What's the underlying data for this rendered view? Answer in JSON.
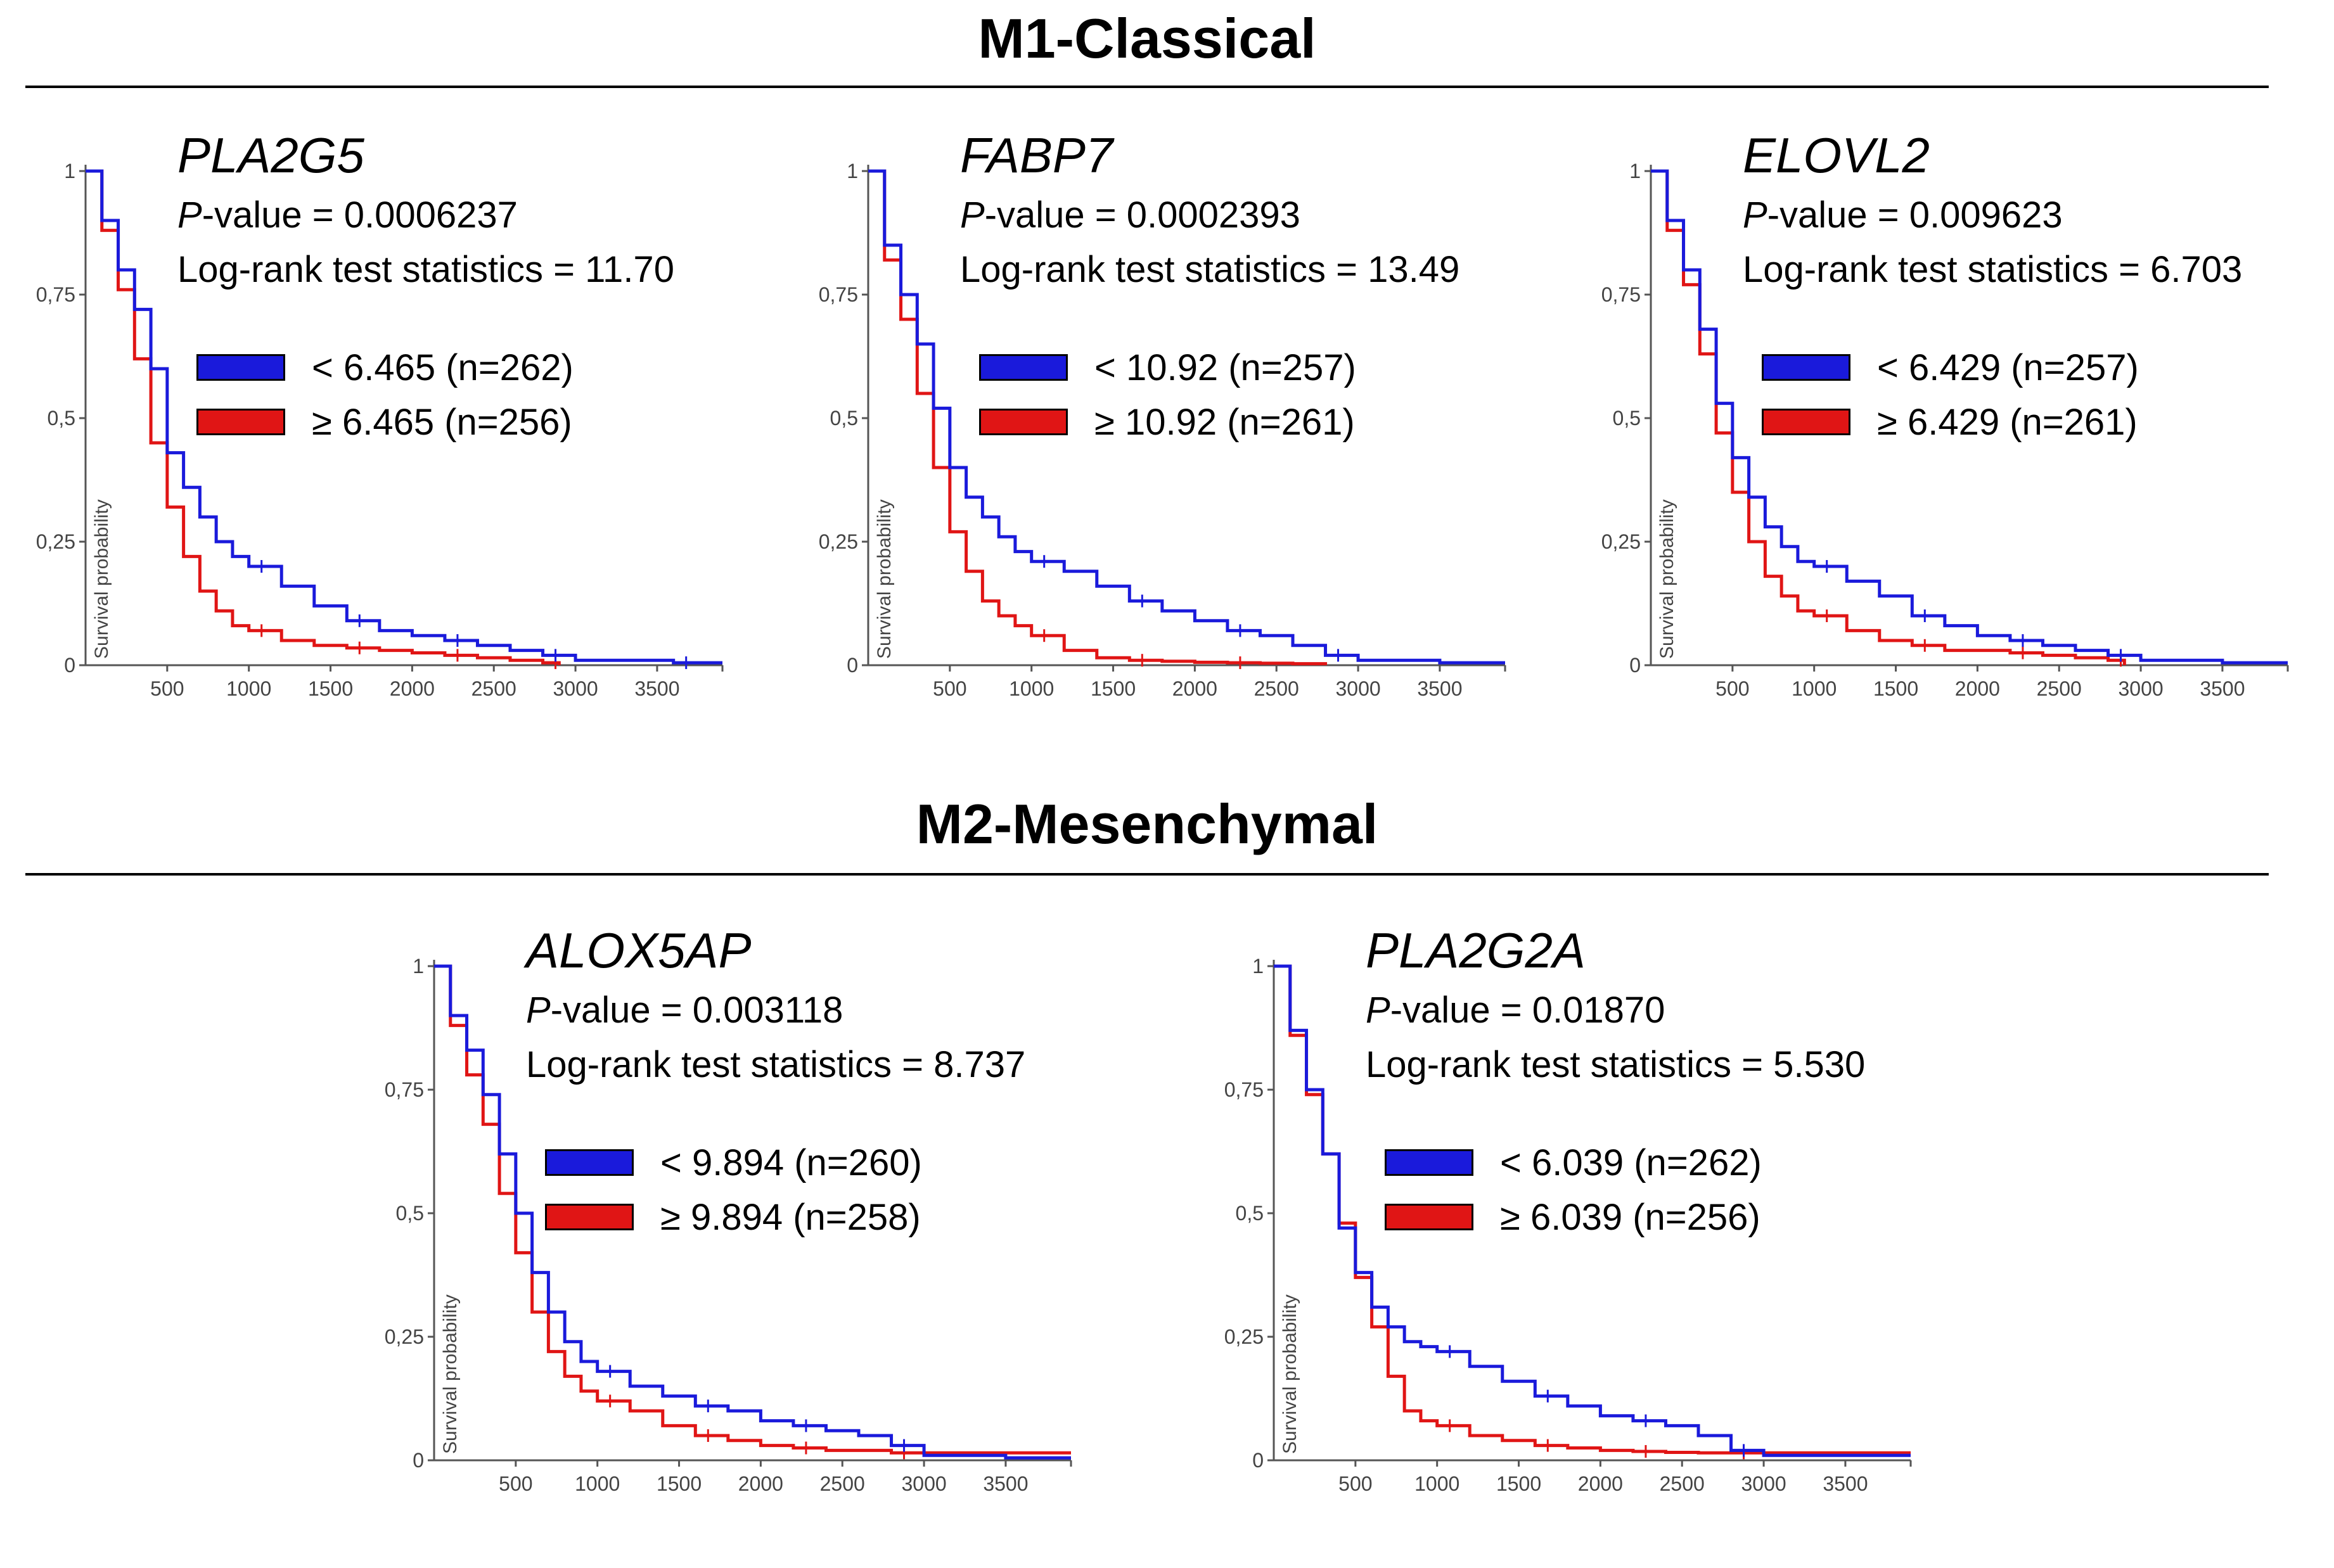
{
  "sections": [
    {
      "title": "M1-Classical"
    },
    {
      "title": "M2-Mesenchymal"
    }
  ],
  "colors": {
    "low": "#1a1adb",
    "high": "#e01515"
  },
  "p_prefix": "P",
  "p_suffix": "-value = ",
  "lrt_prefix": "Log-rank test statistics = ",
  "y_axis_label": "Survival probability",
  "y_ticks": [
    "0",
    "0,25",
    "0,5",
    "0,75",
    "1"
  ],
  "x_ticks": [
    "500",
    "1000",
    "1500",
    "2000",
    "2500",
    "3000",
    "3500"
  ],
  "chart_data": [
    {
      "type": "line",
      "title": "PLA2G5",
      "section": "M1-Classical",
      "p_value": "0.0006237",
      "log_rank": "11.70",
      "xlabel": "",
      "ylabel": "Survival probability",
      "xlim": [
        0,
        3900
      ],
      "ylim": [
        0,
        1
      ],
      "series": [
        {
          "name": "< 6.465 (n=262)",
          "color": "#1a1adb",
          "x": [
            0,
            100,
            200,
            300,
            400,
            500,
            600,
            700,
            800,
            900,
            1000,
            1200,
            1400,
            1600,
            1800,
            2000,
            2200,
            2400,
            2600,
            2800,
            3000,
            3300,
            3600,
            3900
          ],
          "y": [
            1.0,
            0.9,
            0.8,
            0.72,
            0.6,
            0.43,
            0.36,
            0.3,
            0.25,
            0.22,
            0.2,
            0.16,
            0.12,
            0.09,
            0.07,
            0.06,
            0.05,
            0.04,
            0.03,
            0.02,
            0.01,
            0.01,
            0.005,
            0.005
          ]
        },
        {
          "name": "≥ 6.465 (n=256)",
          "color": "#e01515",
          "x": [
            0,
            100,
            200,
            300,
            400,
            500,
            600,
            700,
            800,
            900,
            1000,
            1200,
            1400,
            1600,
            1800,
            2000,
            2200,
            2400,
            2600,
            2800,
            2900
          ],
          "y": [
            1.0,
            0.88,
            0.76,
            0.62,
            0.45,
            0.32,
            0.22,
            0.15,
            0.11,
            0.08,
            0.07,
            0.05,
            0.04,
            0.035,
            0.03,
            0.025,
            0.02,
            0.015,
            0.01,
            0.005,
            0.0
          ]
        }
      ],
      "legend": [
        "< 6.465 (n=262)",
        "≥ 6.465 (n=256)"
      ]
    },
    {
      "type": "line",
      "title": "FABP7",
      "section": "M1-Classical",
      "p_value": "0.0002393",
      "log_rank": "13.49",
      "xlabel": "",
      "ylabel": "Survival probability",
      "xlim": [
        0,
        3900
      ],
      "ylim": [
        0,
        1
      ],
      "series": [
        {
          "name": "< 10.92 (n=257)",
          "color": "#1a1adb",
          "x": [
            0,
            100,
            200,
            300,
            400,
            500,
            600,
            700,
            800,
            900,
            1000,
            1200,
            1400,
            1600,
            1800,
            2000,
            2200,
            2400,
            2600,
            2800,
            3000,
            3500,
            3900
          ],
          "y": [
            1.0,
            0.85,
            0.75,
            0.65,
            0.52,
            0.4,
            0.34,
            0.3,
            0.26,
            0.23,
            0.21,
            0.19,
            0.16,
            0.13,
            0.11,
            0.09,
            0.07,
            0.06,
            0.04,
            0.02,
            0.01,
            0.005,
            0.005
          ]
        },
        {
          "name": "≥ 10.92 (n=261)",
          "color": "#e01515",
          "x": [
            0,
            100,
            200,
            300,
            400,
            500,
            600,
            700,
            800,
            900,
            1000,
            1200,
            1400,
            1600,
            1800,
            2000,
            2200,
            2400,
            2600,
            2800
          ],
          "y": [
            1.0,
            0.82,
            0.7,
            0.55,
            0.4,
            0.27,
            0.19,
            0.13,
            0.1,
            0.08,
            0.06,
            0.03,
            0.015,
            0.01,
            0.008,
            0.006,
            0.005,
            0.004,
            0.003,
            0.0
          ]
        }
      ],
      "legend": [
        "< 10.92 (n=257)",
        "≥ 10.92 (n=261)"
      ]
    },
    {
      "type": "line",
      "title": "ELOVL2",
      "section": "M1-Classical",
      "p_value": "0.009623",
      "log_rank": "6.703",
      "xlabel": "",
      "ylabel": "Survival probability",
      "xlim": [
        0,
        3900
      ],
      "ylim": [
        0,
        1
      ],
      "series": [
        {
          "name": "< 6.429 (n=257)",
          "color": "#1a1adb",
          "x": [
            0,
            100,
            200,
            300,
            400,
            500,
            600,
            700,
            800,
            900,
            1000,
            1200,
            1400,
            1600,
            1800,
            2000,
            2200,
            2400,
            2600,
            2800,
            3000,
            3500,
            3900
          ],
          "y": [
            1.0,
            0.9,
            0.8,
            0.68,
            0.53,
            0.42,
            0.34,
            0.28,
            0.24,
            0.21,
            0.2,
            0.17,
            0.14,
            0.1,
            0.08,
            0.06,
            0.05,
            0.04,
            0.03,
            0.02,
            0.01,
            0.005,
            0.005
          ]
        },
        {
          "name": "≥ 6.429 (n=261)",
          "color": "#e01515",
          "x": [
            0,
            100,
            200,
            300,
            400,
            500,
            600,
            700,
            800,
            900,
            1000,
            1200,
            1400,
            1600,
            1800,
            2000,
            2200,
            2400,
            2600,
            2800,
            2900
          ],
          "y": [
            1.0,
            0.88,
            0.77,
            0.63,
            0.47,
            0.35,
            0.25,
            0.18,
            0.14,
            0.11,
            0.1,
            0.07,
            0.05,
            0.04,
            0.03,
            0.03,
            0.025,
            0.02,
            0.015,
            0.01,
            0.0
          ]
        }
      ],
      "legend": [
        "< 6.429 (n=257)",
        "≥ 6.429 (n=261)"
      ]
    },
    {
      "type": "line",
      "title": "ALOX5AP",
      "section": "M2-Mesenchymal",
      "p_value": "0.003118",
      "log_rank": "8.737",
      "xlabel": "",
      "ylabel": "Survival probability",
      "xlim": [
        0,
        3900
      ],
      "ylim": [
        0,
        1
      ],
      "series": [
        {
          "name": "< 9.894 (n=260)",
          "color": "#1a1adb",
          "x": [
            0,
            100,
            200,
            300,
            400,
            500,
            600,
            700,
            800,
            900,
            1000,
            1200,
            1400,
            1600,
            1800,
            2000,
            2200,
            2400,
            2600,
            2800,
            3000,
            3500,
            3900
          ],
          "y": [
            1.0,
            0.9,
            0.83,
            0.74,
            0.62,
            0.5,
            0.38,
            0.3,
            0.24,
            0.2,
            0.18,
            0.15,
            0.13,
            0.11,
            0.1,
            0.08,
            0.07,
            0.06,
            0.05,
            0.03,
            0.01,
            0.005,
            0.005
          ]
        },
        {
          "name": "≥ 9.894 (n=258)",
          "color": "#e01515",
          "x": [
            0,
            100,
            200,
            300,
            400,
            500,
            600,
            700,
            800,
            900,
            1000,
            1200,
            1400,
            1600,
            1800,
            2000,
            2200,
            2400,
            2600,
            2800,
            3000,
            3500,
            3900
          ],
          "y": [
            1.0,
            0.88,
            0.78,
            0.68,
            0.54,
            0.42,
            0.3,
            0.22,
            0.17,
            0.14,
            0.12,
            0.1,
            0.07,
            0.05,
            0.04,
            0.03,
            0.025,
            0.02,
            0.02,
            0.015,
            0.015,
            0.015,
            0.015
          ]
        }
      ],
      "legend": [
        "< 9.894 (n=260)",
        "≥ 9.894 (n=258)"
      ]
    },
    {
      "type": "line",
      "title": "PLA2G2A",
      "section": "M2-Mesenchymal",
      "p_value": "0.01870",
      "log_rank": "5.530",
      "xlabel": "",
      "ylabel": "Survival probability",
      "xlim": [
        0,
        3900
      ],
      "ylim": [
        0,
        1
      ],
      "series": [
        {
          "name": "< 6.039 (n=262)",
          "color": "#1a1adb",
          "x": [
            0,
            100,
            200,
            300,
            400,
            500,
            600,
            700,
            800,
            900,
            1000,
            1200,
            1400,
            1600,
            1800,
            2000,
            2200,
            2400,
            2600,
            2800,
            3000,
            3500,
            3900
          ],
          "y": [
            1.0,
            0.87,
            0.75,
            0.62,
            0.47,
            0.38,
            0.31,
            0.27,
            0.24,
            0.23,
            0.22,
            0.19,
            0.16,
            0.13,
            0.11,
            0.09,
            0.08,
            0.07,
            0.05,
            0.02,
            0.01,
            0.01,
            0.01
          ]
        },
        {
          "name": "≥ 6.039 (n=256)",
          "color": "#e01515",
          "x": [
            0,
            100,
            200,
            300,
            400,
            500,
            600,
            700,
            800,
            900,
            1000,
            1200,
            1400,
            1600,
            1800,
            2000,
            2200,
            2400,
            2600,
            2800,
            3000,
            3500,
            3900
          ],
          "y": [
            1.0,
            0.86,
            0.74,
            0.62,
            0.48,
            0.37,
            0.27,
            0.17,
            0.1,
            0.08,
            0.07,
            0.05,
            0.04,
            0.03,
            0.025,
            0.02,
            0.018,
            0.016,
            0.015,
            0.015,
            0.015,
            0.015,
            0.015
          ]
        }
      ],
      "legend": [
        "< 6.039 (n=262)",
        "≥ 6.039 (n=256)"
      ]
    }
  ]
}
